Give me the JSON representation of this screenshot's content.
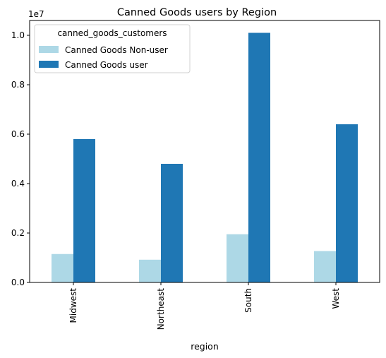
{
  "chart_data": {
    "type": "bar",
    "title": "Canned Goods users by Region",
    "xlabel": "region",
    "ylabel": "",
    "y_multiplier_label": "1e7",
    "categories": [
      "Midwest",
      "Northeast",
      "South",
      "West"
    ],
    "series": [
      {
        "name": "Canned Goods Non-user",
        "color": "#add8e6",
        "values": [
          1150000,
          920000,
          1950000,
          1270000
        ]
      },
      {
        "name": "Canned Goods user",
        "color": "#1f77b4",
        "values": [
          5800000,
          4800000,
          10100000,
          6400000
        ]
      }
    ],
    "ylim": [
      0,
      10600000
    ],
    "yticks": [
      0,
      2000000,
      4000000,
      6000000,
      8000000,
      10000000
    ],
    "ytick_labels": [
      "0.0",
      "0.2",
      "0.4",
      "0.6",
      "0.8",
      "1.0"
    ],
    "legend": {
      "title": "canned_goods_customers",
      "placement": "top-left"
    },
    "grid": false
  }
}
